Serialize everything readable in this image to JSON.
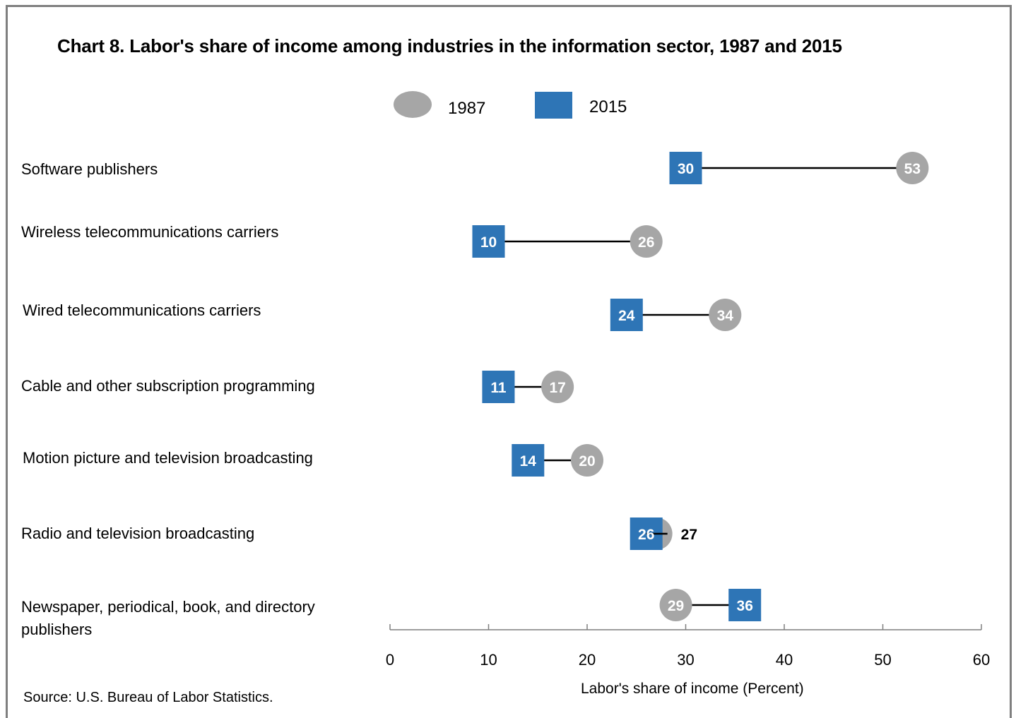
{
  "chart_data": {
    "type": "dumbbell",
    "title": "Chart 8. Labor's share of income among industries in the information sector, 1987 and 2015",
    "xlabel": "Labor's share of income (Percent)",
    "xlim": [
      0,
      60
    ],
    "xticks": [
      0,
      10,
      20,
      30,
      40,
      50,
      60
    ],
    "grid": false,
    "legend_position": "top-center",
    "series": [
      {
        "name": "1987",
        "marker": "circle",
        "color": "#a6a6a6"
      },
      {
        "name": "2015",
        "marker": "square",
        "color": "#2e75b6"
      }
    ],
    "categories": [
      "Software publishers",
      "Wireless telecommunications carriers",
      "Wired telecommunications carriers",
      "Cable and other subscription programming",
      "Motion picture and television broadcasting",
      "Radio and television broadcasting",
      "Newspaper, periodical, book, and directory publishers"
    ],
    "values_1987": [
      53,
      26,
      34,
      17,
      20,
      27,
      29
    ],
    "values_2015": [
      30,
      10,
      24,
      11,
      14,
      26,
      36
    ],
    "source": "Source: U.S. Bureau of Labor Statistics."
  },
  "legend": {
    "label_1987": "1987",
    "label_2015": "2015"
  },
  "colors": {
    "circle": "#a6a6a6",
    "square": "#2e75b6",
    "line": "#000000",
    "axis": "#7f7f7f"
  }
}
